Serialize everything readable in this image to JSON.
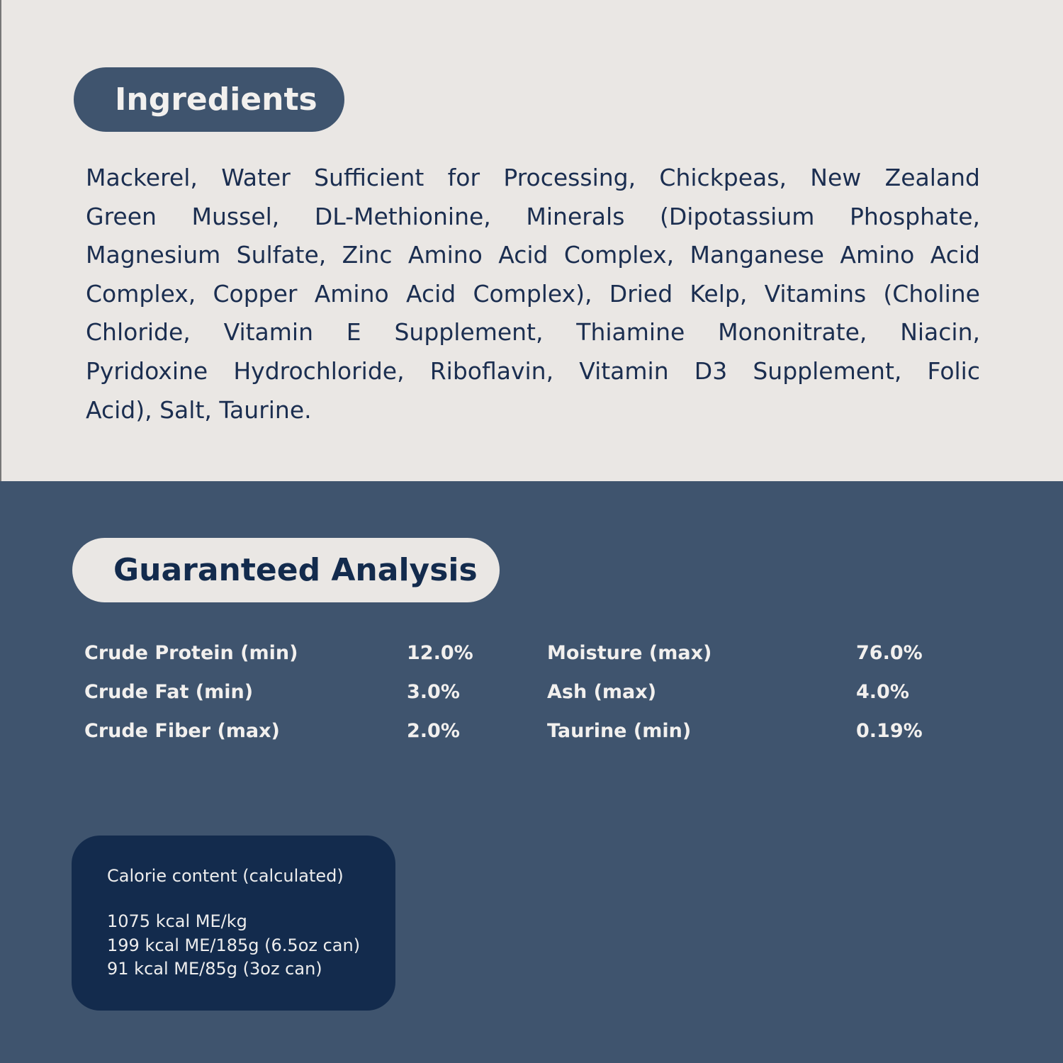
{
  "ingredients": {
    "title": "Ingredients",
    "lines": [
      "Mackerel, Water Sufficient for Processing, Chickpeas, New Zealand",
      "Green Mussel, DL-Methionine, Minerals (Dipotassium Phosphate,",
      "Magnesium Sulfate, Zinc Amino Acid Complex, Manganese Amino Acid",
      "Complex, Copper Amino Acid Complex), Dried Kelp, Vitamins (Choline",
      "Chloride, Vitamin E Supplement, Thiamine Mononitrate, Niacin,",
      "Pyridoxine Hydrochloride, Riboflavin, Vitamin D3 Supplement, Folic",
      "Acid), Salt, Taurine."
    ]
  },
  "analysis": {
    "title": "Guaranteed Analysis",
    "rows": [
      {
        "label": "Crude Protein (min)",
        "value": "12.0%"
      },
      {
        "label": "Crude Fat (min)",
        "value": "3.0%"
      },
      {
        "label": "Crude Fiber (max)",
        "value": "2.0%"
      },
      {
        "label": "Moisture (max)",
        "value": "76.0%"
      },
      {
        "label": "Ash (max)",
        "value": "4.0%"
      },
      {
        "label": "Taurine (min)",
        "value": "0.19%"
      }
    ]
  },
  "calories": {
    "title": "Calorie content (calculated)",
    "lines": [
      "1075 kcal ME/kg",
      "199 kcal ME/185g (6.5oz can)",
      "91 kcal ME/85g (3oz can)"
    ]
  },
  "colors": {
    "cream": "#EAE7E4",
    "slate_blue": "#3F546E",
    "navy": "#132B4D"
  }
}
